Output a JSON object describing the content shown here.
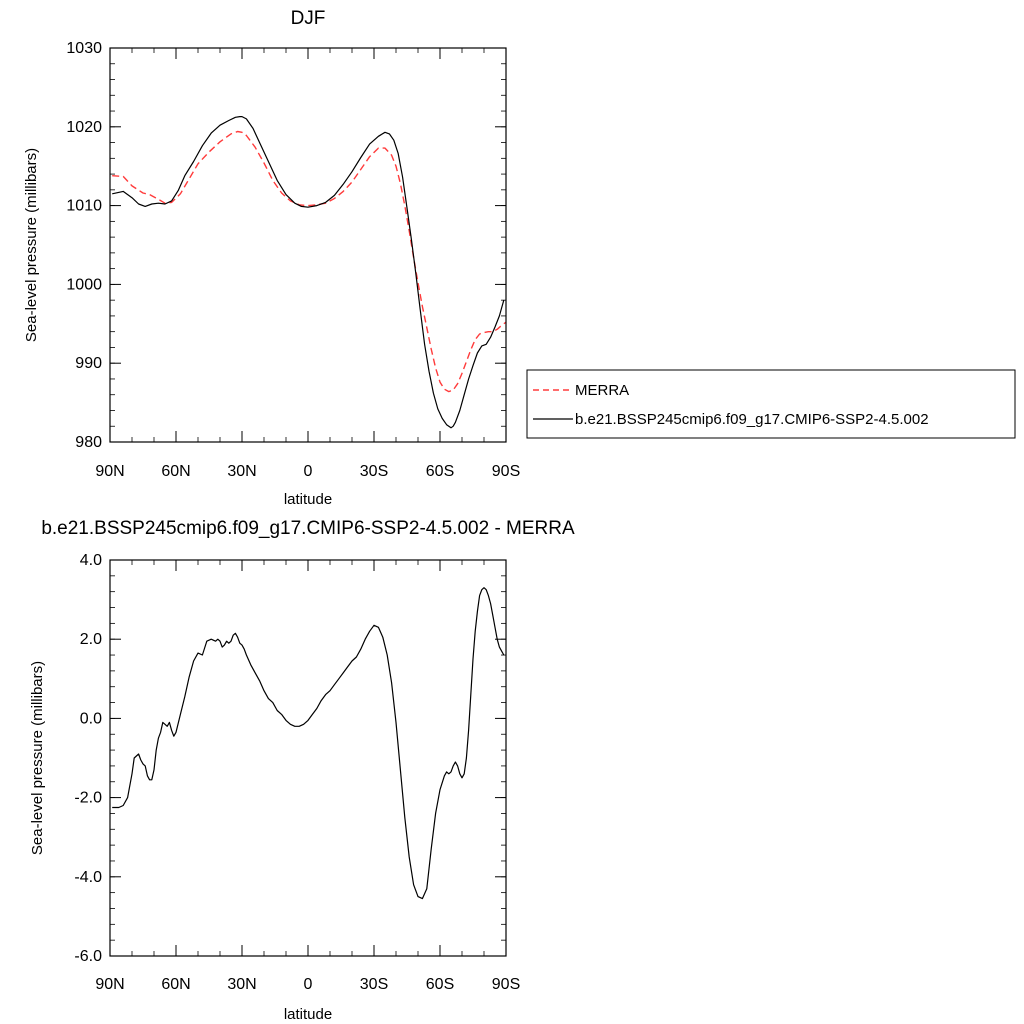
{
  "chart_data": [
    {
      "type": "line",
      "title": "DJF",
      "xlabel": "latitude",
      "ylabel": "Sea-level pressure (millibars)",
      "xlim": [
        90,
        -90
      ],
      "ylim": [
        980,
        1030
      ],
      "x_ticks": [
        90,
        60,
        30,
        0,
        -30,
        -60,
        -90
      ],
      "x_tick_labels": [
        "90N",
        "60N",
        "30N",
        "0",
        "30S",
        "60S",
        "90S"
      ],
      "y_ticks": [
        980,
        990,
        1000,
        1010,
        1020,
        1030
      ],
      "y_tick_labels": [
        "980",
        "990",
        "1000",
        "1010",
        "1020",
        "1030"
      ],
      "grid": false,
      "legend": "right",
      "series": [
        {
          "name": "MERRA",
          "color": "#ff3b3b",
          "dash": "dashed",
          "x": [
            89,
            84,
            80,
            75,
            72,
            68,
            65,
            62,
            58,
            54,
            50,
            45,
            40,
            35,
            32,
            30,
            28,
            24,
            20,
            16,
            12,
            8,
            4,
            0,
            -4,
            -8,
            -12,
            -16,
            -20,
            -24,
            -28,
            -32,
            -35,
            -38,
            -40,
            -42,
            -44,
            -46,
            -48,
            -50,
            -52,
            -54,
            -56,
            -58,
            -60,
            -62,
            -64,
            -66,
            -68,
            -70,
            -72,
            -74,
            -76,
            -78,
            -80,
            -82,
            -84,
            -86,
            -88,
            -90
          ],
          "y": [
            1013.8,
            1013.7,
            1012.5,
            1011.6,
            1011.4,
            1010.8,
            1010.3,
            1010.4,
            1011.5,
            1013.4,
            1015.3,
            1016.8,
            1018.1,
            1019.1,
            1019.4,
            1019.3,
            1018.9,
            1017.4,
            1015.4,
            1013.2,
            1011.6,
            1010.6,
            1010.1,
            1010.0,
            1010.1,
            1010.3,
            1010.9,
            1011.8,
            1013.0,
            1014.6,
            1016.2,
            1017.3,
            1017.3,
            1016.4,
            1015.0,
            1012.8,
            1010.0,
            1006.8,
            1003.4,
            1000.2,
            997.2,
            994.5,
            991.8,
            989.4,
            987.6,
            986.7,
            986.4,
            986.6,
            987.4,
            988.7,
            990.2,
            991.7,
            993.0,
            993.7,
            993.9,
            994.0,
            994.0,
            994.3,
            994.8,
            995.2
          ]
        },
        {
          "name": "b.e21.BSSP245cmip6.f09_g17.CMIP6-SSP2-4.5.002",
          "color": "#000000",
          "dash": "solid",
          "x": [
            89,
            84,
            80,
            77,
            74,
            71,
            68,
            65,
            62,
            59,
            56,
            52,
            48,
            44,
            40,
            36,
            33,
            31,
            30,
            28,
            25,
            22,
            18,
            14,
            10,
            6,
            3,
            0,
            -4,
            -8,
            -12,
            -16,
            -20,
            -24,
            -28,
            -32,
            -35,
            -37,
            -39,
            -41,
            -43,
            -45,
            -47,
            -49,
            -51,
            -53,
            -55,
            -57,
            -59,
            -61,
            -63,
            -65,
            -66,
            -67,
            -69,
            -71,
            -73,
            -75,
            -77,
            -79,
            -81,
            -83,
            -85,
            -87,
            -88,
            -89
          ],
          "y": [
            1011.5,
            1011.8,
            1011.0,
            1010.2,
            1009.9,
            1010.2,
            1010.3,
            1010.2,
            1010.6,
            1011.9,
            1013.8,
            1015.6,
            1017.6,
            1019.2,
            1020.2,
            1020.8,
            1021.2,
            1021.3,
            1021.3,
            1021.0,
            1019.8,
            1018.0,
            1015.6,
            1013.2,
            1011.4,
            1010.3,
            1009.9,
            1009.8,
            1010.0,
            1010.4,
            1011.3,
            1012.7,
            1014.3,
            1016.1,
            1017.8,
            1018.8,
            1019.3,
            1019.1,
            1018.3,
            1016.6,
            1013.6,
            1009.7,
            1005.7,
            1001.4,
            996.8,
            992.4,
            989.0,
            986.2,
            984.2,
            983.0,
            982.2,
            981.8,
            982.0,
            982.5,
            984.0,
            986.0,
            988.0,
            989.7,
            991.3,
            992.2,
            992.4,
            993.3,
            994.6,
            996.0,
            997.0,
            998.0
          ]
        }
      ]
    },
    {
      "type": "line",
      "title": "b.e21.BSSP245cmip6.f09_g17.CMIP6-SSP2-4.5.002 - MERRA",
      "xlabel": "latitude",
      "ylabel": "Sea-level pressure (millibars)",
      "xlim": [
        90,
        -90
      ],
      "ylim": [
        -6,
        4
      ],
      "x_ticks": [
        90,
        60,
        30,
        0,
        -30,
        -60,
        -90
      ],
      "x_tick_labels": [
        "90N",
        "60N",
        "30N",
        "0",
        "30S",
        "60S",
        "90S"
      ],
      "y_ticks": [
        -6,
        -4,
        -2,
        0,
        2,
        4
      ],
      "y_tick_labels": [
        "-6.0",
        "-4.0",
        "-2.0",
        "0.0",
        "2.0",
        "4.0"
      ],
      "grid": false,
      "series": [
        {
          "color": "#000000",
          "dash": "solid",
          "x": [
            89,
            86,
            84,
            82,
            80,
            79,
            78,
            77,
            76,
            75,
            74,
            73,
            72,
            71,
            70,
            69,
            68,
            67,
            66,
            65,
            64,
            63,
            62,
            61,
            60,
            58,
            56,
            54,
            52,
            50,
            48,
            46,
            44,
            42,
            41,
            40,
            39,
            38,
            37,
            36,
            35,
            34,
            33,
            32,
            31,
            30,
            29,
            28,
            26,
            24,
            22,
            20,
            18,
            16,
            14,
            12,
            10,
            8,
            6,
            4,
            2,
            0,
            -2,
            -4,
            -6,
            -8,
            -10,
            -12,
            -14,
            -16,
            -18,
            -20,
            -22,
            -24,
            -26,
            -28,
            -30,
            -32,
            -34,
            -36,
            -38,
            -40,
            -42,
            -44,
            -46,
            -48,
            -50,
            -52,
            -54,
            -56,
            -58,
            -60,
            -62,
            -63,
            -64,
            -65,
            -66,
            -67,
            -68,
            -69,
            -70,
            -71,
            -72,
            -73,
            -74,
            -75,
            -76,
            -77,
            -78,
            -79,
            -80,
            -81,
            -82,
            -83,
            -84,
            -85,
            -86,
            -87,
            -88,
            -89
          ],
          "y": [
            -2.25,
            -2.25,
            -2.2,
            -2.0,
            -1.4,
            -1.0,
            -0.95,
            -0.9,
            -1.05,
            -1.15,
            -1.2,
            -1.45,
            -1.55,
            -1.55,
            -1.3,
            -0.8,
            -0.5,
            -0.35,
            -0.1,
            -0.15,
            -0.2,
            -0.1,
            -0.3,
            -0.45,
            -0.35,
            0.1,
            0.55,
            1.05,
            1.45,
            1.65,
            1.6,
            1.95,
            2.0,
            1.95,
            2.0,
            1.95,
            1.8,
            1.85,
            1.95,
            1.9,
            1.95,
            2.1,
            2.15,
            2.05,
            1.9,
            1.85,
            1.75,
            1.6,
            1.35,
            1.15,
            0.95,
            0.7,
            0.5,
            0.4,
            0.2,
            0.1,
            -0.05,
            -0.15,
            -0.2,
            -0.2,
            -0.15,
            -0.05,
            0.1,
            0.25,
            0.45,
            0.6,
            0.7,
            0.85,
            1.0,
            1.15,
            1.3,
            1.45,
            1.55,
            1.75,
            2.0,
            2.2,
            2.35,
            2.3,
            2.05,
            1.6,
            0.9,
            -0.1,
            -1.3,
            -2.5,
            -3.5,
            -4.2,
            -4.5,
            -4.55,
            -4.3,
            -3.3,
            -2.4,
            -1.8,
            -1.45,
            -1.35,
            -1.4,
            -1.35,
            -1.2,
            -1.1,
            -1.2,
            -1.4,
            -1.5,
            -1.4,
            -1.0,
            -0.3,
            0.6,
            1.5,
            2.2,
            2.7,
            3.1,
            3.25,
            3.3,
            3.25,
            3.1,
            2.9,
            2.6,
            2.3,
            2.0,
            1.8,
            1.7,
            1.6
          ]
        }
      ]
    }
  ]
}
